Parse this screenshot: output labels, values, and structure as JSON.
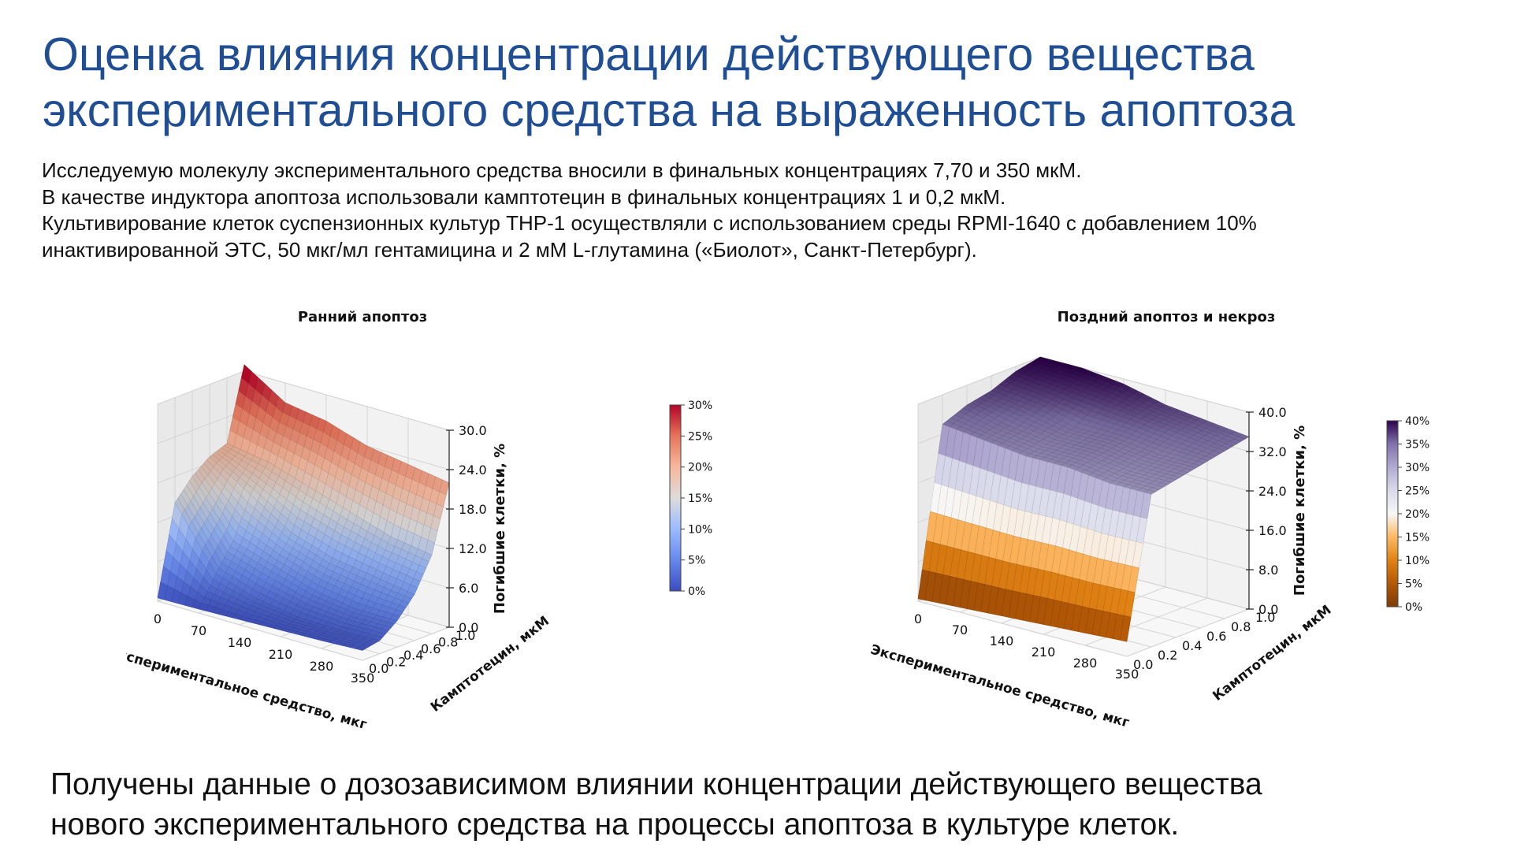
{
  "slide": {
    "title_lines": [
      "Оценка влияния концентрации действующего вещества",
      "экспериментального средства на выраженность апоптоза"
    ],
    "intro_lines": [
      "Исследуемую молекулу экспериментального средства вносили в финальных концентрациях 7,70 и 350 мкМ.",
      "В качестве индуктора апоптоза использовали камптотецин в финальных концентрациях 1 и 0,2 мкМ.",
      "Культивирование клеток суспензионных культур THP-1 осуществляли с использованием среды RPMI-1640 с добавлением 10%",
      "инактивированной ЭТС, 50 мкг/мл гентамицина и 2 мМ L-глутамина («Биолот», Санкт-Петербург)."
    ],
    "conclusion_lines": [
      "Получены данные о дозозависимом влиянии концентрации действующего вещества",
      "нового экспериментального средства на процессы апоптоза в культуре клеток."
    ]
  },
  "chart_data": [
    {
      "type": "surface",
      "title": "Ранний апоптоз",
      "xlabel": "Экспериментальное средство, мкг",
      "ylabel": "Камптотецин, мкМ",
      "zlabel": "Погибшие клетки, %",
      "x": [
        0,
        70,
        140,
        210,
        280,
        350
      ],
      "y": [
        0.0,
        0.2,
        0.4,
        0.6,
        0.8,
        1.0
      ],
      "x_ticks": [
        "0",
        "70",
        "140",
        "210",
        "280",
        "350"
      ],
      "y_ticks": [
        "0.0",
        "0.2",
        "0.4",
        "0.6",
        "0.8",
        "1.0"
      ],
      "z_ticks": [
        "0.0",
        "6.0",
        "12.0",
        "18.0",
        "24.0",
        "30.0"
      ],
      "zlim": [
        0,
        30
      ],
      "z_grid": [
        [
          0.5,
          0.6,
          0.8,
          1.0,
          1.2,
          1.5
        ],
        [
          14,
          5,
          3,
          2,
          1.8,
          2
        ],
        [
          17,
          9,
          7,
          5,
          4,
          4
        ],
        [
          19,
          15,
          11,
          9,
          8,
          7
        ],
        [
          20,
          19,
          17,
          15,
          13,
          12
        ],
        [
          31,
          27,
          26,
          24,
          23,
          22
        ]
      ],
      "colormap": "coolwarm",
      "colorbar": {
        "ticks": [
          "0%",
          "5%",
          "10%",
          "15%",
          "20%",
          "25%",
          "30%"
        ],
        "colors": [
          "#3b4cc0",
          "#6788ee",
          "#9abbff",
          "#dddcdc",
          "#f7b89c",
          "#e7745b",
          "#b40426"
        ]
      },
      "grid": true
    },
    {
      "type": "surface",
      "title": "Поздний апоптоз и некроз",
      "xlabel": "Экспериментальное средство, мкг",
      "ylabel": "Камптотецин, мкМ",
      "zlabel": "Погибшие клетки, %",
      "x": [
        0,
        70,
        140,
        210,
        280,
        350
      ],
      "y": [
        0.0,
        0.2,
        0.4,
        0.6,
        0.8,
        1.0
      ],
      "x_ticks": [
        "0",
        "70",
        "140",
        "210",
        "280",
        "350"
      ],
      "y_ticks": [
        "0.0",
        "0.2",
        "0.4",
        "0.6",
        "0.8",
        "1.0"
      ],
      "z_ticks": [
        "0.0",
        "8.0",
        "16.0",
        "24.0",
        "32.0",
        "40.0"
      ],
      "zlim": [
        0,
        40
      ],
      "z_grid": [
        [
          0.5,
          1,
          1.5,
          2,
          2.5,
          3
        ],
        [
          34,
          33,
          32,
          32,
          31,
          31
        ],
        [
          36,
          34,
          33,
          33,
          32,
          32
        ],
        [
          37,
          36,
          34,
          34,
          33,
          33
        ],
        [
          39,
          38,
          37,
          36,
          35,
          34
        ],
        [
          40,
          40,
          39,
          37,
          36,
          35
        ]
      ],
      "colormap": "PuOr",
      "colorbar": {
        "ticks": [
          "0%",
          "5%",
          "10%",
          "15%",
          "20%",
          "25%",
          "30%",
          "35%",
          "40%"
        ],
        "colors": [
          "#7f3b08",
          "#b35806",
          "#e08214",
          "#fdb863",
          "#f7f7f7",
          "#d8daeb",
          "#b2abd2",
          "#8073ac",
          "#2d004b"
        ]
      },
      "grid": true
    }
  ]
}
